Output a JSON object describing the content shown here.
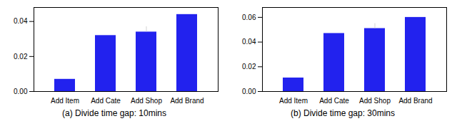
{
  "chart_data": [
    {
      "type": "bar",
      "title": "(a) Divide time gap: 10mins",
      "categories": [
        "Add Item",
        "Add Cate",
        "Add Shop",
        "Add Brand"
      ],
      "values": [
        0.007,
        0.032,
        0.034,
        0.044
      ],
      "yerr": [
        0,
        0,
        0.003,
        0
      ],
      "color": "#2222ee",
      "ylim": [
        0,
        0.048
      ],
      "yticks": [
        {
          "value": 0.0,
          "label": "0.00"
        },
        {
          "value": 0.02,
          "label": "0.02"
        },
        {
          "value": 0.04,
          "label": "0.04"
        }
      ]
    },
    {
      "type": "bar",
      "title": "(b) Divide time gap: 30mins",
      "categories": [
        "Add Item",
        "Add Cate",
        "Add Shop",
        "Add Brand"
      ],
      "values": [
        0.011,
        0.047,
        0.051,
        0.06
      ],
      "yerr": [
        0,
        0,
        0.004,
        0
      ],
      "color": "#2222ee",
      "ylim": [
        0,
        0.068
      ],
      "yticks": [
        {
          "value": 0.0,
          "label": "0.00"
        },
        {
          "value": 0.02,
          "label": "0.02"
        },
        {
          "value": 0.04,
          "label": "0.04"
        },
        {
          "value": 0.06,
          "label": "0.06"
        }
      ]
    }
  ]
}
